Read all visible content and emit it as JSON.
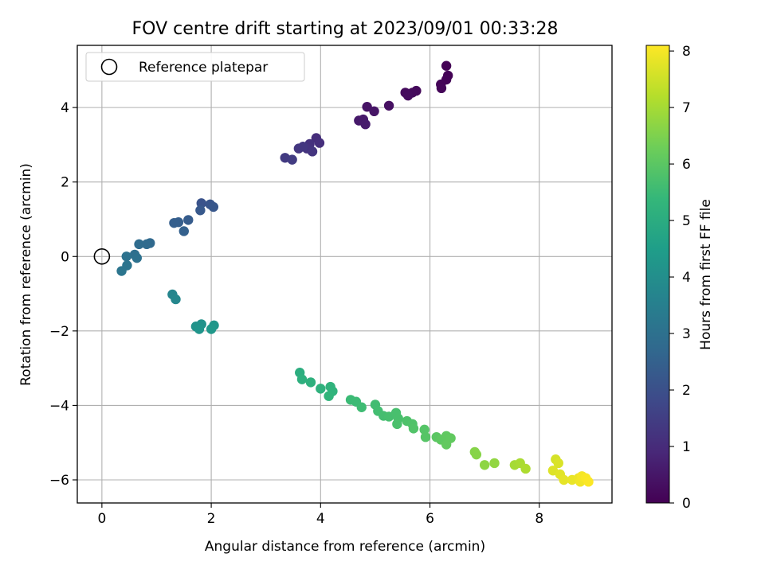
{
  "chart_data": {
    "type": "scatter",
    "title": "FOV centre drift starting at 2023/09/01 00:33:28",
    "xlabel": "Angular distance from reference (arcmin)",
    "ylabel": "Rotation from reference (arcmin)",
    "xlim": [
      -0.45,
      9.33
    ],
    "ylim": [
      -6.62,
      5.67
    ],
    "xticks": [
      0,
      2,
      4,
      6,
      8
    ],
    "yticks": [
      -6,
      -4,
      -2,
      0,
      2,
      4
    ],
    "grid": true,
    "legend": {
      "location": "upper-left",
      "entries": [
        {
          "label": "Reference platepar",
          "marker": "open-circle"
        }
      ]
    },
    "reference_point": {
      "x": 0,
      "y": 0
    },
    "colorbar": {
      "label": "Hours from first FF file",
      "range": [
        0,
        8.1
      ],
      "ticks": [
        0,
        1,
        2,
        3,
        4,
        5,
        6,
        7,
        8
      ],
      "colormap": "viridis"
    },
    "series": [
      {
        "values": [
          [
            6.3,
            5.12,
            0.02
          ],
          [
            6.33,
            4.86,
            0.05
          ],
          [
            6.3,
            4.75,
            0.08
          ],
          [
            6.2,
            4.62,
            0.1
          ],
          [
            6.21,
            4.52,
            0.12
          ],
          [
            5.75,
            4.45,
            0.18
          ],
          [
            5.68,
            4.4,
            0.2
          ],
          [
            5.55,
            4.4,
            0.22
          ],
          [
            5.6,
            4.32,
            0.25
          ],
          [
            5.25,
            4.05,
            0.35
          ],
          [
            4.85,
            4.02,
            0.42
          ],
          [
            4.98,
            3.9,
            0.45
          ],
          [
            4.7,
            3.65,
            0.55
          ],
          [
            4.78,
            3.68,
            0.58
          ],
          [
            4.82,
            3.55,
            0.6
          ],
          [
            3.92,
            3.18,
            1.05
          ],
          [
            3.98,
            3.05,
            1.1
          ],
          [
            3.8,
            3.02,
            1.15
          ],
          [
            3.75,
            2.9,
            1.2
          ],
          [
            3.85,
            2.82,
            1.25
          ],
          [
            3.6,
            2.9,
            1.3
          ],
          [
            3.68,
            2.95,
            1.32
          ],
          [
            3.35,
            2.65,
            1.4
          ],
          [
            3.48,
            2.6,
            1.45
          ],
          [
            1.82,
            1.43,
            2.1
          ],
          [
            1.98,
            1.4,
            2.15
          ],
          [
            2.04,
            1.33,
            2.2
          ],
          [
            1.8,
            1.24,
            2.25
          ],
          [
            1.58,
            0.98,
            2.35
          ],
          [
            1.4,
            0.92,
            2.4
          ],
          [
            1.32,
            0.9,
            2.45
          ],
          [
            1.5,
            0.68,
            2.5
          ],
          [
            0.88,
            0.36,
            2.75
          ],
          [
            0.82,
            0.33,
            2.8
          ],
          [
            0.68,
            0.33,
            2.85
          ],
          [
            0.6,
            0.05,
            2.95
          ],
          [
            0.64,
            -0.04,
            3.0
          ],
          [
            0.45,
            0.0,
            3.05
          ],
          [
            0.46,
            -0.24,
            3.1
          ],
          [
            0.36,
            -0.39,
            3.15
          ],
          [
            1.29,
            -1.02,
            3.7
          ],
          [
            1.35,
            -1.15,
            3.75
          ],
          [
            1.82,
            -1.82,
            4.1
          ],
          [
            1.72,
            -1.88,
            4.15
          ],
          [
            1.78,
            -1.95,
            4.2
          ],
          [
            2.05,
            -1.85,
            4.25
          ],
          [
            2.0,
            -1.95,
            4.3
          ],
          [
            3.62,
            -3.12,
            5.05
          ],
          [
            3.66,
            -3.3,
            5.1
          ],
          [
            3.82,
            -3.38,
            5.15
          ],
          [
            4.0,
            -3.55,
            5.2
          ],
          [
            4.18,
            -3.5,
            5.22
          ],
          [
            4.22,
            -3.62,
            5.25
          ],
          [
            4.15,
            -3.75,
            5.28
          ],
          [
            4.55,
            -3.85,
            5.5
          ],
          [
            4.65,
            -3.9,
            5.52
          ],
          [
            4.75,
            -4.05,
            5.55
          ],
          [
            5.0,
            -3.98,
            5.6
          ],
          [
            5.05,
            -4.15,
            5.62
          ],
          [
            5.15,
            -4.28,
            5.65
          ],
          [
            5.25,
            -4.3,
            5.68
          ],
          [
            5.38,
            -4.2,
            5.7
          ],
          [
            5.42,
            -4.35,
            5.72
          ],
          [
            5.4,
            -4.5,
            5.75
          ],
          [
            5.58,
            -4.42,
            5.8
          ],
          [
            5.68,
            -4.5,
            5.82
          ],
          [
            5.7,
            -4.62,
            5.85
          ],
          [
            5.9,
            -4.65,
            5.9
          ],
          [
            5.92,
            -4.85,
            5.92
          ],
          [
            6.12,
            -4.85,
            6.0
          ],
          [
            6.2,
            -4.92,
            6.05
          ],
          [
            6.3,
            -4.82,
            6.08
          ],
          [
            6.38,
            -4.88,
            6.1
          ],
          [
            6.3,
            -5.05,
            6.12
          ],
          [
            6.82,
            -5.25,
            6.6
          ],
          [
            6.85,
            -5.32,
            6.62
          ],
          [
            7.0,
            -5.6,
            6.7
          ],
          [
            7.18,
            -5.55,
            6.75
          ],
          [
            7.55,
            -5.6,
            7.0
          ],
          [
            7.65,
            -5.55,
            7.05
          ],
          [
            7.75,
            -5.7,
            7.1
          ],
          [
            8.3,
            -5.45,
            7.6
          ],
          [
            8.35,
            -5.55,
            7.65
          ],
          [
            8.25,
            -5.75,
            7.7
          ],
          [
            8.38,
            -5.85,
            7.75
          ],
          [
            8.45,
            -6.0,
            7.8
          ],
          [
            8.6,
            -6.0,
            7.85
          ],
          [
            8.72,
            -5.95,
            7.9
          ],
          [
            8.75,
            -6.05,
            7.95
          ],
          [
            8.78,
            -5.9,
            8.0
          ],
          [
            8.85,
            -5.95,
            8.05
          ],
          [
            8.9,
            -6.05,
            8.08
          ]
        ]
      }
    ]
  }
}
